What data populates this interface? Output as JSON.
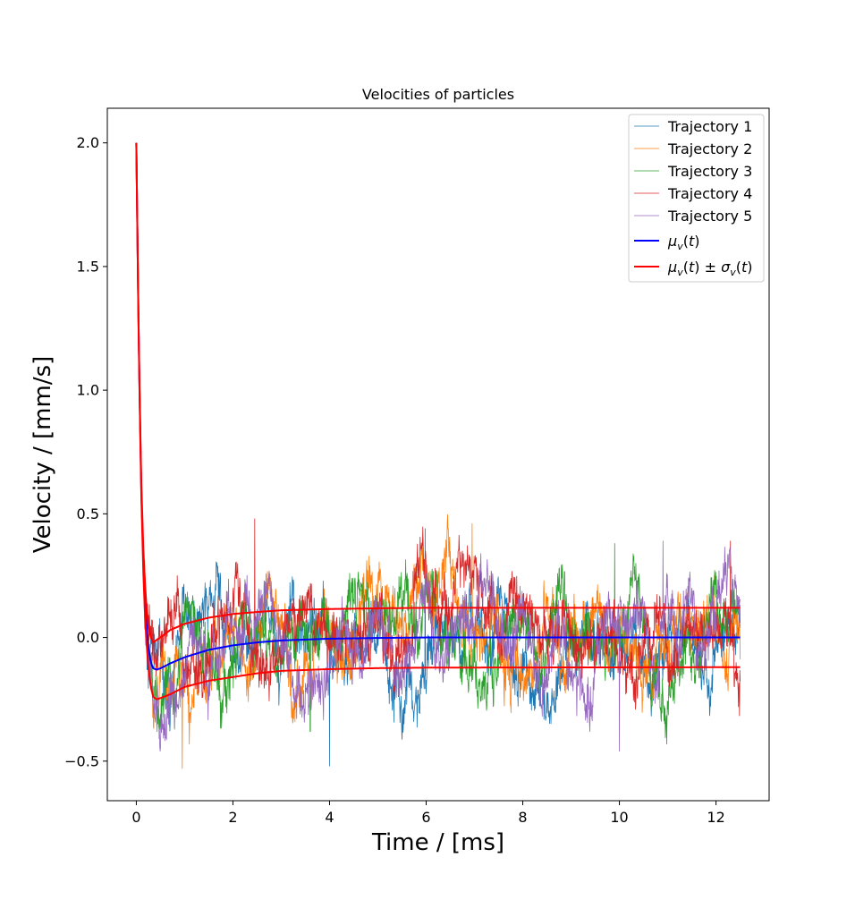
{
  "chart_data": {
    "type": "line",
    "title": "Velocities of particles",
    "xlabel": "Time / [ms]",
    "ylabel": "Velocity / [mm/s]",
    "xlim": [
      -0.6,
      13.1
    ],
    "ylim": [
      -0.66,
      2.14
    ],
    "x_ticks": [
      0,
      2,
      4,
      6,
      8,
      10,
      12
    ],
    "x_tick_labels": [
      "0",
      "2",
      "4",
      "6",
      "8",
      "10",
      "12"
    ],
    "y_ticks": [
      -0.5,
      0.0,
      0.5,
      1.0,
      1.5,
      2.0
    ],
    "y_tick_labels": [
      "−0.5",
      "0.0",
      "0.5",
      "1.0",
      "1.5",
      "2.0"
    ],
    "grid": false,
    "legend_position": "top-right",
    "time_range": [
      0,
      12.5
    ],
    "series": [
      {
        "name": "Trajectory 1",
        "color": "#1f77b4",
        "kind": "noisy",
        "noise_sd": 0.12,
        "extremes": [
          [
            4.0,
            -0.52
          ],
          [
            5.98,
            0.44
          ]
        ]
      },
      {
        "name": "Trajectory 2",
        "color": "#ff7f0e",
        "kind": "noisy",
        "noise_sd": 0.12,
        "extremes": [
          [
            0.95,
            -0.53
          ],
          [
            6.95,
            0.46
          ]
        ]
      },
      {
        "name": "Trajectory 3",
        "color": "#2ca02c",
        "kind": "noisy",
        "noise_sd": 0.12,
        "extremes": [
          [
            3.6,
            -0.38
          ],
          [
            9.9,
            0.38
          ]
        ]
      },
      {
        "name": "Trajectory 4",
        "color": "#d62728",
        "kind": "noisy",
        "noise_sd": 0.12,
        "extremes": [
          [
            2.45,
            0.48
          ],
          [
            12.3,
            0.39
          ]
        ]
      },
      {
        "name": "Trajectory 5",
        "color": "#9467bd",
        "kind": "noisy",
        "noise_sd": 0.12,
        "extremes": [
          [
            10.0,
            -0.46
          ],
          [
            10.9,
            0.39
          ]
        ]
      },
      {
        "name": "μ_v(t)",
        "color": "#0000ff",
        "kind": "mean",
        "points": [
          [
            0,
            2.0
          ],
          [
            0.05,
            1.2
          ],
          [
            0.1,
            0.62
          ],
          [
            0.15,
            0.28
          ],
          [
            0.2,
            0.08
          ],
          [
            0.25,
            -0.04
          ],
          [
            0.3,
            -0.1
          ],
          [
            0.35,
            -0.125
          ],
          [
            0.42,
            -0.13
          ],
          [
            0.5,
            -0.125
          ],
          [
            0.7,
            -0.105
          ],
          [
            1.0,
            -0.08
          ],
          [
            1.5,
            -0.05
          ],
          [
            2.0,
            -0.032
          ],
          [
            2.5,
            -0.02
          ],
          [
            3.0,
            -0.012
          ],
          [
            4.0,
            -0.005
          ],
          [
            5.0,
            -0.002
          ],
          [
            6.0,
            0.0
          ],
          [
            12.5,
            0.0
          ]
        ]
      },
      {
        "name": "μ_v(t) ± σ_v(t)",
        "color": "#ff0000",
        "kind": "band",
        "upper": [
          [
            0,
            2.0
          ],
          [
            0.05,
            1.21
          ],
          [
            0.1,
            0.65
          ],
          [
            0.15,
            0.33
          ],
          [
            0.2,
            0.15
          ],
          [
            0.25,
            0.05
          ],
          [
            0.3,
            0.0
          ],
          [
            0.35,
            -0.02
          ],
          [
            0.42,
            -0.01
          ],
          [
            0.5,
            0.0
          ],
          [
            0.7,
            0.03
          ],
          [
            1.0,
            0.055
          ],
          [
            1.5,
            0.08
          ],
          [
            2.0,
            0.095
          ],
          [
            2.5,
            0.103
          ],
          [
            3.0,
            0.11
          ],
          [
            4.0,
            0.115
          ],
          [
            5.0,
            0.118
          ],
          [
            6.0,
            0.12
          ],
          [
            12.5,
            0.12
          ]
        ],
        "lower": [
          [
            0,
            2.0
          ],
          [
            0.05,
            1.19
          ],
          [
            0.1,
            0.6
          ],
          [
            0.15,
            0.23
          ],
          [
            0.2,
            0.01
          ],
          [
            0.25,
            -0.12
          ],
          [
            0.3,
            -0.2
          ],
          [
            0.35,
            -0.24
          ],
          [
            0.42,
            -0.25
          ],
          [
            0.5,
            -0.245
          ],
          [
            0.7,
            -0.23
          ],
          [
            1.0,
            -0.2
          ],
          [
            1.5,
            -0.175
          ],
          [
            2.0,
            -0.16
          ],
          [
            2.5,
            -0.145
          ],
          [
            3.0,
            -0.135
          ],
          [
            4.0,
            -0.128
          ],
          [
            5.0,
            -0.124
          ],
          [
            6.0,
            -0.122
          ],
          [
            12.5,
            -0.12
          ]
        ]
      }
    ]
  }
}
